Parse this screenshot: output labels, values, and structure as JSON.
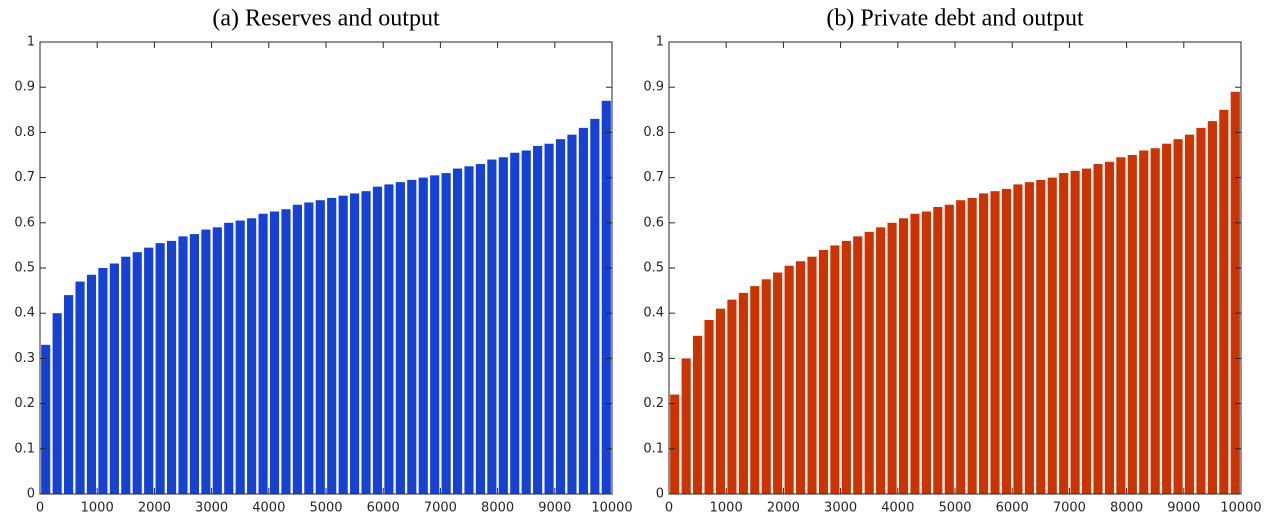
{
  "chart_data": [
    {
      "type": "bar",
      "title": "(a) Reserves and output",
      "color": "#1542d4",
      "x": [
        100,
        300,
        500,
        700,
        900,
        1100,
        1300,
        1500,
        1700,
        1900,
        2100,
        2300,
        2500,
        2700,
        2900,
        3100,
        3300,
        3500,
        3700,
        3900,
        4100,
        4300,
        4500,
        4700,
        4900,
        5100,
        5300,
        5500,
        5700,
        5900,
        6100,
        6300,
        6500,
        6700,
        6900,
        7100,
        7300,
        7500,
        7700,
        7900,
        8100,
        8300,
        8500,
        8700,
        8900,
        9100,
        9300,
        9500,
        9700,
        9900
      ],
      "values": [
        0.33,
        0.4,
        0.44,
        0.47,
        0.485,
        0.5,
        0.51,
        0.525,
        0.535,
        0.545,
        0.555,
        0.56,
        0.57,
        0.575,
        0.585,
        0.59,
        0.6,
        0.605,
        0.61,
        0.62,
        0.625,
        0.63,
        0.64,
        0.645,
        0.65,
        0.655,
        0.66,
        0.665,
        0.67,
        0.68,
        0.685,
        0.69,
        0.695,
        0.7,
        0.705,
        0.71,
        0.72,
        0.725,
        0.73,
        0.74,
        0.745,
        0.755,
        0.76,
        0.77,
        0.775,
        0.785,
        0.795,
        0.81,
        0.83,
        0.87
      ],
      "xlim": [
        0,
        10000
      ],
      "xticks": [
        0,
        1000,
        2000,
        3000,
        4000,
        5000,
        6000,
        7000,
        8000,
        9000,
        10000
      ],
      "ylim": [
        0,
        1
      ],
      "yticks": [
        0,
        0.1,
        0.2,
        0.3,
        0.4,
        0.5,
        0.6,
        0.7,
        0.8,
        0.9,
        1
      ]
    },
    {
      "type": "bar",
      "title": "(b) Private debt and output",
      "color": "#cc3300",
      "x": [
        100,
        300,
        500,
        700,
        900,
        1100,
        1300,
        1500,
        1700,
        1900,
        2100,
        2300,
        2500,
        2700,
        2900,
        3100,
        3300,
        3500,
        3700,
        3900,
        4100,
        4300,
        4500,
        4700,
        4900,
        5100,
        5300,
        5500,
        5700,
        5900,
        6100,
        6300,
        6500,
        6700,
        6900,
        7100,
        7300,
        7500,
        7700,
        7900,
        8100,
        8300,
        8500,
        8700,
        8900,
        9100,
        9300,
        9500,
        9700,
        9900
      ],
      "values": [
        0.22,
        0.3,
        0.35,
        0.385,
        0.41,
        0.43,
        0.445,
        0.46,
        0.475,
        0.49,
        0.505,
        0.515,
        0.525,
        0.54,
        0.55,
        0.56,
        0.57,
        0.58,
        0.59,
        0.6,
        0.61,
        0.62,
        0.625,
        0.635,
        0.64,
        0.65,
        0.655,
        0.665,
        0.67,
        0.675,
        0.685,
        0.69,
        0.695,
        0.7,
        0.71,
        0.715,
        0.72,
        0.73,
        0.735,
        0.745,
        0.75,
        0.76,
        0.765,
        0.775,
        0.785,
        0.795,
        0.81,
        0.825,
        0.85,
        0.89
      ],
      "xlim": [
        0,
        10000
      ],
      "xticks": [
        0,
        1000,
        2000,
        3000,
        4000,
        5000,
        6000,
        7000,
        8000,
        9000,
        10000
      ],
      "ylim": [
        0,
        1
      ],
      "yticks": [
        0,
        0.1,
        0.2,
        0.3,
        0.4,
        0.5,
        0.6,
        0.7,
        0.8,
        0.9,
        1
      ]
    }
  ]
}
